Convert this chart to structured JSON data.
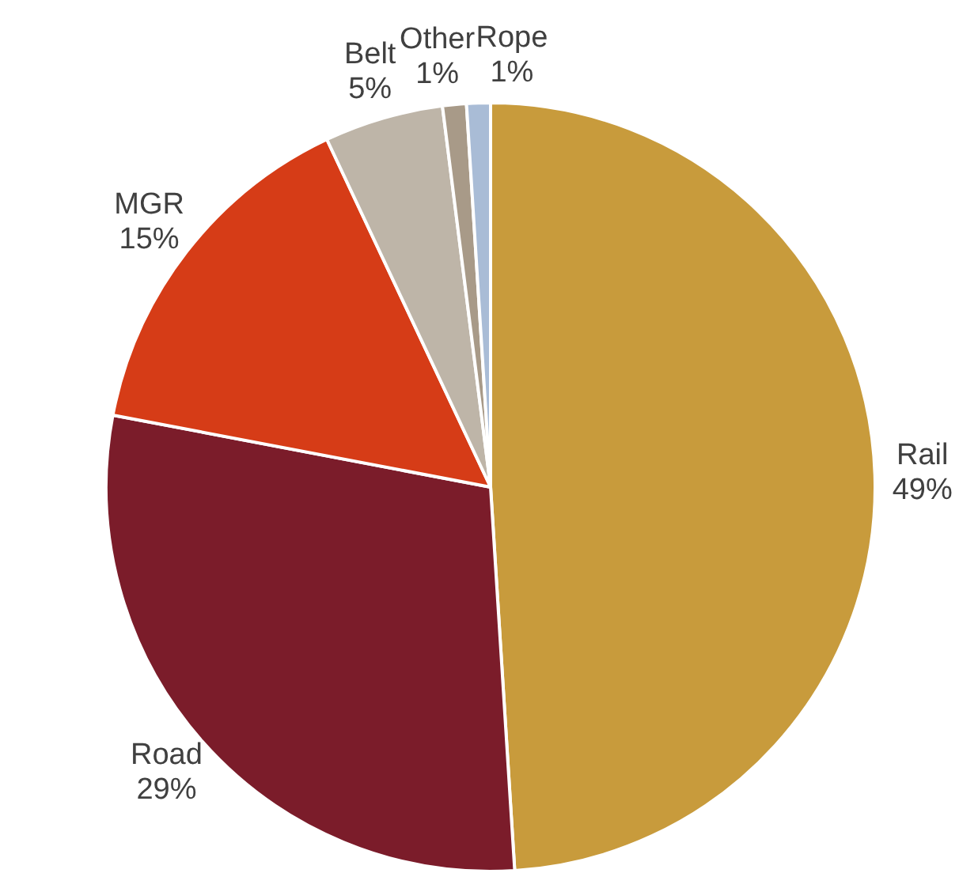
{
  "chart_data": {
    "type": "pie",
    "categories": [
      "Rail",
      "Road",
      "MGR",
      "Belt",
      "Other",
      "Rope"
    ],
    "values": [
      49,
      29,
      15,
      5,
      1,
      1
    ],
    "value_labels": [
      "49%",
      "29%",
      "15%",
      "5%",
      "1%",
      "1%"
    ],
    "colors": [
      "#c89b3c",
      "#7b1c2a",
      "#d63c17",
      "#beb5a8",
      "#a89a88",
      "#a9bcd6"
    ],
    "legend": false
  }
}
